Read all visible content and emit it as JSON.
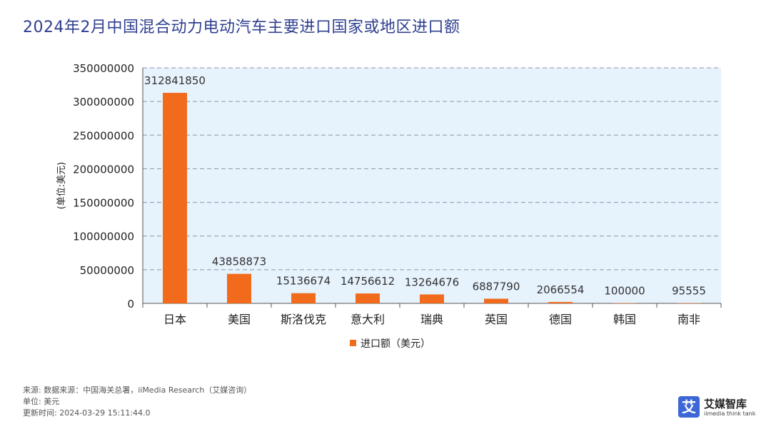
{
  "chart_data": {
    "type": "bar",
    "title": "2024年2月中国混合动力电动汽车主要进口国家或地区进口额",
    "ylabel": "(单位:美元)",
    "xlabel": "",
    "ylim": [
      0,
      350000000
    ],
    "yticks": [
      0,
      50000000,
      100000000,
      150000000,
      200000000,
      250000000,
      300000000,
      350000000
    ],
    "categories": [
      "日本",
      "美国",
      "斯洛伐克",
      "意大利",
      "瑞典",
      "英国",
      "德国",
      "韩国",
      "南非"
    ],
    "series": [
      {
        "name": "进口额（美元）",
        "values": [
          312841850,
          43858873,
          15136674,
          14756612,
          13264676,
          6887790,
          2066554,
          100000,
          95555
        ],
        "color": "#f26b1d"
      }
    ],
    "legend": "bottom-center",
    "grid": true,
    "plot_background": "#e6f2fc"
  },
  "footer": {
    "source": "来源: 数据来源：中国海关总署，iiMedia Research（艾媒咨询）",
    "unit": "单位: 美元",
    "updated": "更新时间: 2024-03-29 15:11:44.0"
  },
  "logo": {
    "mark": "艾",
    "name": "艾媒智库",
    "sub": "iimedia think tank"
  }
}
